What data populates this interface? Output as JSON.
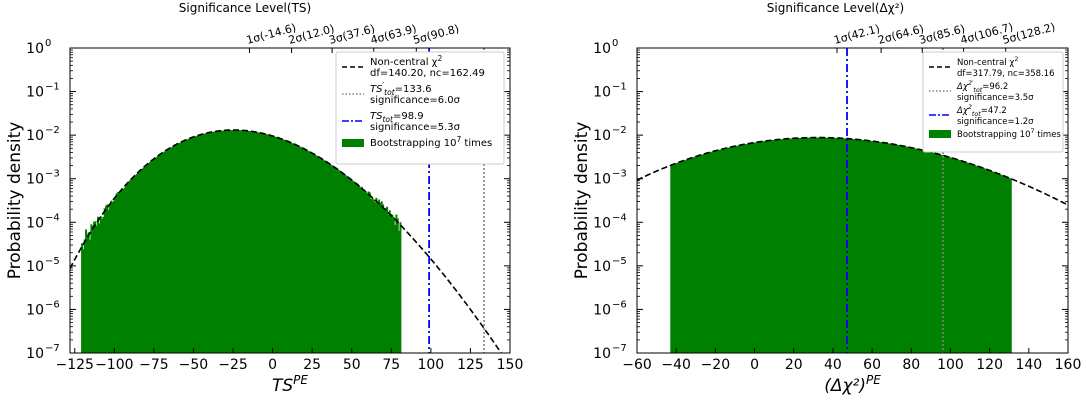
{
  "chart_data": [
    {
      "type": "histogram",
      "xlabel_main": "TS",
      "xlabel_sup": "PE",
      "ylabel": "Probability density",
      "top_axis_title": "Significance Level(TS)",
      "xlim": [
        -128,
        150
      ],
      "ylog": true,
      "ylim_exp": [
        -7,
        0
      ],
      "xticks": [
        -125,
        -100,
        -75,
        -50,
        -25,
        0,
        25,
        50,
        75,
        100,
        125,
        150
      ],
      "xtick_labels": [
        "−125",
        "−100",
        "−75",
        "−50",
        "−25",
        "0",
        "25",
        "50",
        "75",
        "100",
        "125",
        "150"
      ],
      "yticks": [
        {
          "exp": 0,
          "base": "10",
          "sup": "0"
        },
        {
          "exp": -1,
          "base": "10",
          "sup": "−1"
        },
        {
          "exp": -2,
          "base": "10",
          "sup": "−2"
        },
        {
          "exp": -3,
          "base": "10",
          "sup": "−3"
        },
        {
          "exp": -4,
          "base": "10",
          "sup": "−4"
        },
        {
          "exp": -5,
          "base": "10",
          "sup": "−5"
        },
        {
          "exp": -6,
          "base": "10",
          "sup": "−6"
        },
        {
          "exp": -7,
          "base": "10",
          "sup": "−7"
        }
      ],
      "top_ticks": [
        {
          "x": -14.6,
          "label": "1σ(-14.6)"
        },
        {
          "x": 12.0,
          "label": "2σ(12.0)"
        },
        {
          "x": 37.6,
          "label": "3σ(37.6)"
        },
        {
          "x": 63.9,
          "label": "4σ(63.9)"
        },
        {
          "x": 90.8,
          "label": "5σ(90.8)"
        }
      ],
      "noncentral_chi2": {
        "df": 140.2,
        "nc": 162.49
      },
      "histogram": {
        "color": "#008000",
        "x_min": -121,
        "x_max": 81
      },
      "vlines": [
        {
          "x": 133.6,
          "style": "dotted",
          "color": "#808080"
        },
        {
          "x": 98.9,
          "style": "dashdot",
          "color": "#0000ff"
        }
      ],
      "legend": {
        "position": "top-right",
        "entries": [
          {
            "kind": "line",
            "style": "dashed",
            "color": "#000000",
            "line1_pre": "Non-central χ",
            "line1_sup": "2",
            "line1_post": "",
            "line2": "df=140.20, nc=162.49"
          },
          {
            "kind": "line",
            "style": "dotted",
            "color": "#808080",
            "line1_pre": "TS",
            "line1_sup": "′",
            "line1_sub": "tot",
            "line1_post": "=133.6",
            "line2": "significance=6.0σ"
          },
          {
            "kind": "line",
            "style": "dashdot",
            "color": "#0000ff",
            "line1_pre": "TS",
            "line1_sup": "",
            "line1_sub": "tot",
            "line1_post": "=98.9",
            "line2": "significance=5.3σ"
          },
          {
            "kind": "patch",
            "color": "#008000",
            "line1_pre": "Bootstrapping 10",
            "line1_sup": "7",
            "line1_post": " times",
            "line2": ""
          }
        ]
      }
    },
    {
      "type": "histogram",
      "xlabel_main": "(Δχ²)",
      "xlabel_sup": "PE",
      "ylabel": "Probability density",
      "top_axis_title": "Significance Level(Δχ²)",
      "xlim": [
        -60,
        160
      ],
      "ylog": true,
      "ylim_exp": [
        -7,
        0
      ],
      "xticks": [
        -60,
        -40,
        -20,
        0,
        20,
        40,
        60,
        80,
        100,
        120,
        140,
        160
      ],
      "xtick_labels": [
        "−60",
        "−40",
        "−20",
        "0",
        "20",
        "40",
        "60",
        "80",
        "100",
        "120",
        "140",
        "160"
      ],
      "yticks": [
        {
          "exp": 0,
          "base": "10",
          "sup": "0"
        },
        {
          "exp": -1,
          "base": "10",
          "sup": "−1"
        },
        {
          "exp": -2,
          "base": "10",
          "sup": "−2"
        },
        {
          "exp": -3,
          "base": "10",
          "sup": "−3"
        },
        {
          "exp": -4,
          "base": "10",
          "sup": "−4"
        },
        {
          "exp": -5,
          "base": "10",
          "sup": "−5"
        },
        {
          "exp": -6,
          "base": "10",
          "sup": "−6"
        },
        {
          "exp": -7,
          "base": "10",
          "sup": "−7"
        }
      ],
      "top_ticks": [
        {
          "x": 42.1,
          "label": "1σ(42.1)"
        },
        {
          "x": 64.6,
          "label": "2σ(64.6)"
        },
        {
          "x": 85.6,
          "label": "3σ(85.6)"
        },
        {
          "x": 106.7,
          "label": "4σ(106.7)"
        },
        {
          "x": 128.2,
          "label": "5σ(128.2)"
        }
      ],
      "noncentral_chi2": {
        "df": 317.79,
        "nc": 358.16
      },
      "histogram": {
        "color": "#008000",
        "x_min": -43,
        "x_max": 131
      },
      "vlines": [
        {
          "x": 96.2,
          "style": "dotted",
          "color": "#808080"
        },
        {
          "x": 47.2,
          "style": "dashdot",
          "color": "#0000ff"
        }
      ],
      "legend": {
        "position": "top-right",
        "entries": [
          {
            "kind": "line",
            "style": "dashed",
            "color": "#000000",
            "line1_pre": "Non-central χ",
            "line1_sup": "2",
            "line1_post": "",
            "line2": "df=317.79, nc=358.16"
          },
          {
            "kind": "line",
            "style": "dotted",
            "color": "#808080",
            "line1_pre": "Δχ",
            "line1_sup": "2′",
            "line1_sub": "tot",
            "line1_post": "=96.2",
            "line2": "significance=3.5σ"
          },
          {
            "kind": "line",
            "style": "dashdot",
            "color": "#0000ff",
            "line1_pre": "Δχ",
            "line1_sup": "2",
            "line1_sub": "tot",
            "line1_post": "=47.2",
            "line2": "significance=1.2σ"
          },
          {
            "kind": "patch",
            "color": "#008000",
            "line1_pre": "Bootstrapping 10",
            "line1_sup": "7",
            "line1_post": " times",
            "line2": ""
          }
        ]
      }
    }
  ]
}
